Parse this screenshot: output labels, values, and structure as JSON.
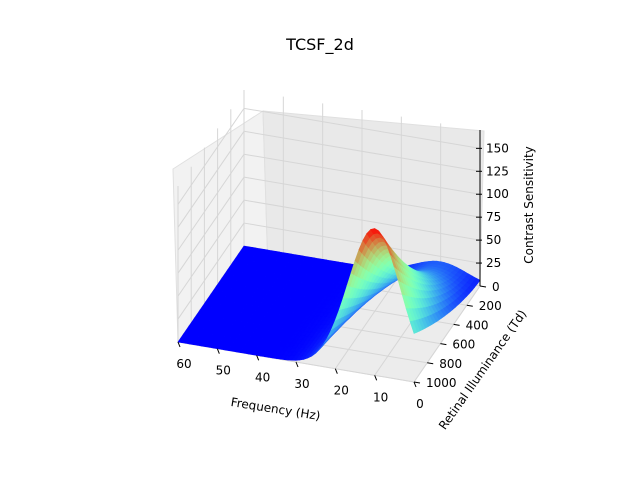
{
  "chart_data": {
    "type": "surface3d",
    "title": "TCSF_2d",
    "xlabel": "Frequency (Hz)",
    "ylabel": "Retinal Illuminance (Td)",
    "zlabel": "Contrast Sensitivity",
    "x_ticks": [
      60,
      50,
      40,
      30,
      20,
      10,
      0
    ],
    "y_ticks": [
      0,
      200,
      400,
      600,
      800,
      1000
    ],
    "z_ticks": [
      25,
      50,
      75,
      100,
      125,
      150
    ],
    "xlim": [
      0,
      60
    ],
    "ylim": [
      0,
      1000
    ],
    "zlim": [
      0,
      170
    ],
    "colormap": "rainbow",
    "grid": true,
    "peak": {
      "frequency": 10,
      "illuminance": 1000,
      "sensitivity": 160
    }
  }
}
